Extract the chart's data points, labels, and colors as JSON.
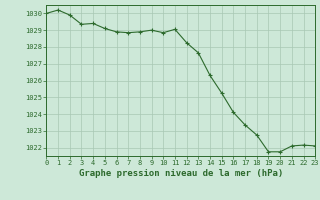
{
  "x": [
    0,
    1,
    2,
    3,
    4,
    5,
    6,
    7,
    8,
    9,
    10,
    11,
    12,
    13,
    14,
    15,
    16,
    17,
    18,
    19,
    20,
    21,
    22,
    23
  ],
  "y": [
    1030.0,
    1030.2,
    1029.9,
    1029.35,
    1029.4,
    1029.1,
    1028.9,
    1028.85,
    1028.9,
    1029.0,
    1028.85,
    1029.05,
    1028.25,
    1027.65,
    1026.3,
    1025.25,
    1024.1,
    1023.35,
    1022.75,
    1021.75,
    1021.75,
    1022.1,
    1022.15,
    1022.1
  ],
  "xlim": [
    0,
    23
  ],
  "ylim": [
    1021.5,
    1030.5
  ],
  "yticks": [
    1022,
    1023,
    1024,
    1025,
    1026,
    1027,
    1028,
    1029,
    1030
  ],
  "xticks": [
    0,
    1,
    2,
    3,
    4,
    5,
    6,
    7,
    8,
    9,
    10,
    11,
    12,
    13,
    14,
    15,
    16,
    17,
    18,
    19,
    20,
    21,
    22,
    23
  ],
  "line_color": "#2d6a2d",
  "marker_color": "#2d6a2d",
  "bg_color": "#cde8d8",
  "grid_color": "#a8c8b4",
  "xlabel": "Graphe pression niveau de la mer (hPa)",
  "xlabel_fontsize": 6.5,
  "tick_fontsize": 5.0,
  "label_color": "#2d6a2d"
}
